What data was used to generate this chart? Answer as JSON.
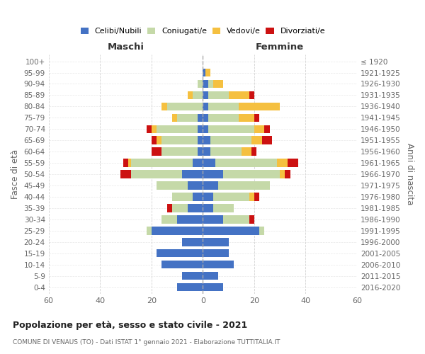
{
  "age_groups": [
    "0-4",
    "5-9",
    "10-14",
    "15-19",
    "20-24",
    "25-29",
    "30-34",
    "35-39",
    "40-44",
    "45-49",
    "50-54",
    "55-59",
    "60-64",
    "65-69",
    "70-74",
    "75-79",
    "80-84",
    "85-89",
    "90-94",
    "95-99",
    "100+"
  ],
  "birth_years": [
    "2016-2020",
    "2011-2015",
    "2006-2010",
    "2001-2005",
    "1996-2000",
    "1991-1995",
    "1986-1990",
    "1981-1985",
    "1976-1980",
    "1971-1975",
    "1966-1970",
    "1961-1965",
    "1956-1960",
    "1951-1955",
    "1946-1950",
    "1941-1945",
    "1936-1940",
    "1931-1935",
    "1926-1930",
    "1921-1925",
    "≤ 1920"
  ],
  "maschi": {
    "celibi": [
      10,
      8,
      16,
      18,
      8,
      20,
      10,
      6,
      4,
      6,
      8,
      4,
      2,
      2,
      2,
      2,
      0,
      0,
      0,
      0,
      0
    ],
    "coniugati": [
      0,
      0,
      0,
      0,
      0,
      2,
      6,
      6,
      8,
      12,
      20,
      24,
      14,
      14,
      16,
      8,
      14,
      4,
      2,
      0,
      0
    ],
    "vedovi": [
      0,
      0,
      0,
      0,
      0,
      0,
      0,
      0,
      0,
      0,
      0,
      1,
      0,
      2,
      2,
      2,
      2,
      2,
      0,
      0,
      0
    ],
    "divorziati": [
      0,
      0,
      0,
      0,
      0,
      0,
      0,
      2,
      0,
      0,
      4,
      2,
      4,
      2,
      2,
      0,
      0,
      0,
      0,
      0,
      0
    ]
  },
  "femmine": {
    "nubili": [
      8,
      6,
      12,
      10,
      10,
      22,
      8,
      4,
      4,
      6,
      8,
      5,
      3,
      3,
      2,
      2,
      2,
      2,
      2,
      1,
      0
    ],
    "coniugate": [
      0,
      0,
      0,
      0,
      0,
      2,
      10,
      8,
      14,
      20,
      22,
      24,
      12,
      16,
      18,
      12,
      12,
      8,
      2,
      0,
      0
    ],
    "vedove": [
      0,
      0,
      0,
      0,
      0,
      0,
      0,
      0,
      2,
      0,
      2,
      4,
      4,
      4,
      4,
      6,
      16,
      8,
      4,
      2,
      0
    ],
    "divorziate": [
      0,
      0,
      0,
      0,
      0,
      0,
      2,
      0,
      2,
      0,
      2,
      4,
      2,
      4,
      2,
      2,
      0,
      2,
      0,
      0,
      0
    ]
  },
  "colors": {
    "celibi": "#4472C4",
    "coniugati": "#C5D9A8",
    "vedovi": "#F5C040",
    "divorziati": "#CC1111"
  },
  "title": "Popolazione per età, sesso e stato civile - 2021",
  "subtitle": "COMUNE DI VENAUS (TO) - Dati ISTAT 1° gennaio 2021 - Elaborazione TUTTITALIA.IT",
  "header_left": "Maschi",
  "header_right": "Femmine",
  "ylabel_left": "Fasce di età",
  "ylabel_right": "Anni di nascita",
  "xlim": 60,
  "legend_labels": [
    "Celibi/Nubili",
    "Coniugati/e",
    "Vedovi/e",
    "Divorziati/e"
  ]
}
